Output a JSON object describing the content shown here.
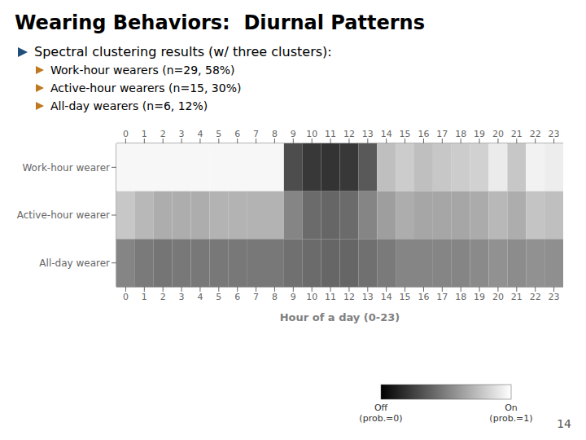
{
  "chart_data": {
    "type": "heatmap",
    "title": "Wearing Behaviors:  Diurnal Patterns",
    "subtitle": "Spectral clustering results (w/ three clusters):",
    "annotations": [
      "Work-hour wearers (n=29, 58%)",
      "Active-hour wearers (n=15, 30%)",
      "All-day wearers (n=6, 12%)",
      "14"
    ],
    "xlabel": "Hour of a day (0-23)",
    "x": [
      0,
      1,
      2,
      3,
      4,
      5,
      6,
      7,
      8,
      9,
      10,
      11,
      12,
      13,
      14,
      15,
      16,
      17,
      18,
      19,
      20,
      21,
      22,
      23
    ],
    "xlim": [
      -0.5,
      23.5
    ],
    "xticks": [
      0,
      1,
      2,
      3,
      4,
      5,
      6,
      7,
      8,
      9,
      10,
      11,
      12,
      13,
      14,
      15,
      16,
      17,
      18,
      19,
      20,
      21,
      22,
      23
    ],
    "ylim": [
      2.5,
      -0.5
    ],
    "yticks": [
      {
        "value": 0,
        "label": "Work-hour wearer"
      },
      {
        "value": 1,
        "label": "Active-hour wearer"
      },
      {
        "value": 2,
        "label": "All-day wearer"
      }
    ],
    "cells": [
      [
        0.97,
        0.97,
        0.97,
        0.97,
        0.97,
        0.97,
        0.97,
        0.97,
        0.97,
        0.3,
        0.22,
        0.2,
        0.22,
        0.35,
        0.75,
        0.8,
        0.75,
        0.78,
        0.8,
        0.82,
        0.92,
        0.78,
        0.95,
        0.93
      ],
      [
        0.78,
        0.72,
        0.68,
        0.68,
        0.68,
        0.7,
        0.7,
        0.7,
        0.7,
        0.52,
        0.42,
        0.4,
        0.42,
        0.52,
        0.62,
        0.68,
        0.65,
        0.65,
        0.65,
        0.67,
        0.72,
        0.68,
        0.77,
        0.75
      ],
      [
        0.52,
        0.48,
        0.46,
        0.47,
        0.47,
        0.47,
        0.47,
        0.47,
        0.47,
        0.44,
        0.42,
        0.4,
        0.4,
        0.44,
        0.48,
        0.52,
        0.52,
        0.52,
        0.52,
        0.54,
        0.57,
        0.55,
        0.57,
        0.56
      ]
    ],
    "colorbar_range": [
      0,
      1
    ],
    "colorbar_ticks": [
      {
        "value": 0,
        "label": "Off\n(prob.=0)"
      },
      {
        "value": 1,
        "label": "On\n(prob.=1)"
      }
    ]
  }
}
